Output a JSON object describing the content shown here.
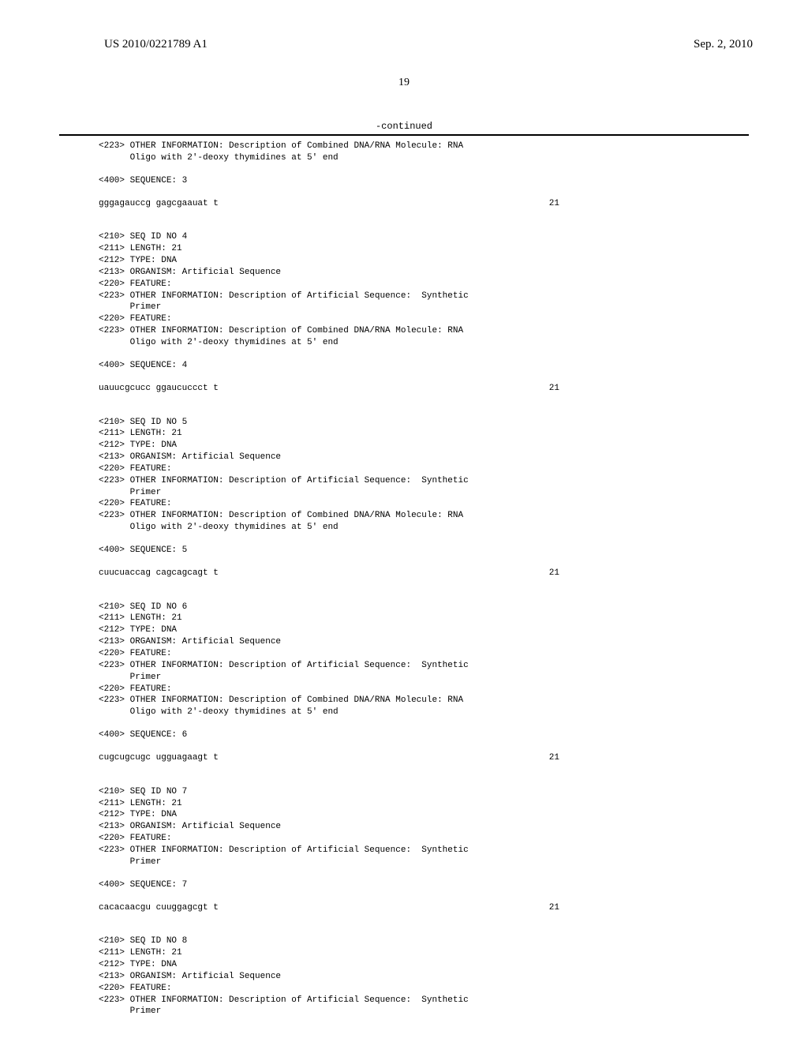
{
  "header": {
    "pub_number": "US 2010/0221789 A1",
    "pub_date": "Sep. 2, 2010"
  },
  "page_number": "19",
  "continued_label": "-continued",
  "entries": [
    {
      "pre_lines": [
        "<223> OTHER INFORMATION: Description of Combined DNA/RNA Molecule: RNA",
        "      Oligo with 2'-deoxy thymidines at 5' end"
      ],
      "seq_tag": "<400> SEQUENCE: 3",
      "sequence": "gggagauccg gagcgaauat t",
      "length": "21"
    },
    {
      "pre_lines": [
        "<210> SEQ ID NO 4",
        "<211> LENGTH: 21",
        "<212> TYPE: DNA",
        "<213> ORGANISM: Artificial Sequence",
        "<220> FEATURE:",
        "<223> OTHER INFORMATION: Description of Artificial Sequence:  Synthetic",
        "      Primer",
        "<220> FEATURE:",
        "<223> OTHER INFORMATION: Description of Combined DNA/RNA Molecule: RNA",
        "      Oligo with 2'-deoxy thymidines at 5' end"
      ],
      "seq_tag": "<400> SEQUENCE: 4",
      "sequence": "uauucgcucc ggaucuccct t",
      "length": "21"
    },
    {
      "pre_lines": [
        "<210> SEQ ID NO 5",
        "<211> LENGTH: 21",
        "<212> TYPE: DNA",
        "<213> ORGANISM: Artificial Sequence",
        "<220> FEATURE:",
        "<223> OTHER INFORMATION: Description of Artificial Sequence:  Synthetic",
        "      Primer",
        "<220> FEATURE:",
        "<223> OTHER INFORMATION: Description of Combined DNA/RNA Molecule: RNA",
        "      Oligo with 2'-deoxy thymidines at 5' end"
      ],
      "seq_tag": "<400> SEQUENCE: 5",
      "sequence": "cuucuaccag cagcagcagt t",
      "length": "21"
    },
    {
      "pre_lines": [
        "<210> SEQ ID NO 6",
        "<211> LENGTH: 21",
        "<212> TYPE: DNA",
        "<213> ORGANISM: Artificial Sequence",
        "<220> FEATURE:",
        "<223> OTHER INFORMATION: Description of Artificial Sequence:  Synthetic",
        "      Primer",
        "<220> FEATURE:",
        "<223> OTHER INFORMATION: Description of Combined DNA/RNA Molecule: RNA",
        "      Oligo with 2'-deoxy thymidines at 5' end"
      ],
      "seq_tag": "<400> SEQUENCE: 6",
      "sequence": "cugcugcugc ugguagaagt t",
      "length": "21"
    },
    {
      "pre_lines": [
        "<210> SEQ ID NO 7",
        "<211> LENGTH: 21",
        "<212> TYPE: DNA",
        "<213> ORGANISM: Artificial Sequence",
        "<220> FEATURE:",
        "<223> OTHER INFORMATION: Description of Artificial Sequence:  Synthetic",
        "      Primer"
      ],
      "seq_tag": "<400> SEQUENCE: 7",
      "sequence": "cacacaacgu cuuggagcgt t",
      "length": "21"
    },
    {
      "pre_lines": [
        "<210> SEQ ID NO 8",
        "<211> LENGTH: 21",
        "<212> TYPE: DNA",
        "<213> ORGANISM: Artificial Sequence",
        "<220> FEATURE:",
        "<223> OTHER INFORMATION: Description of Artificial Sequence:  Synthetic",
        "      Primer"
      ],
      "seq_tag": null,
      "sequence": null,
      "length": null
    }
  ]
}
